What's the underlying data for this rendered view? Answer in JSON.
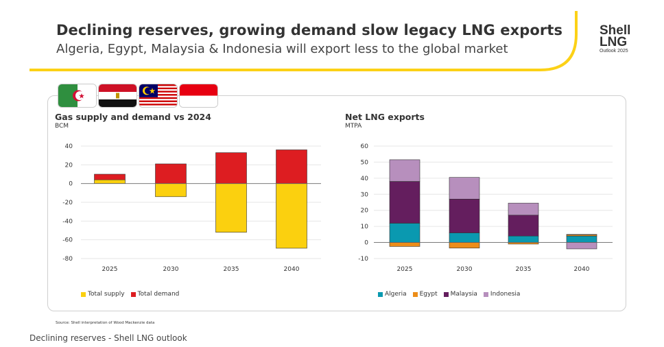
{
  "header": {
    "title": "Declining reserves, growing demand slow legacy LNG exports",
    "subtitle": "Algeria, Egypt, Malaysia & Indonesia will export less to the global market",
    "brand_line1": "Shell",
    "brand_line2": "LNG",
    "brand_line3": "Outlook 2025"
  },
  "colors": {
    "accent_yellow": "#fcd116",
    "supply": "#fbd00f",
    "demand": "#dd1d21",
    "algeria": "#0a99b0",
    "egypt": "#ec8d19",
    "malaysia": "#641e5e",
    "indonesia": "#b78fbd"
  },
  "flags": [
    "algeria-flag-icon",
    "egypt-flag-icon",
    "malaysia-flag-icon",
    "indonesia-flag-icon"
  ],
  "chart_data": [
    {
      "type": "bar",
      "stacked": true,
      "title": "Gas supply and demand vs 2024",
      "ylabel": "BCM",
      "categories": [
        "2025",
        "2030",
        "2035",
        "2040"
      ],
      "ylim": [
        -80,
        40
      ],
      "yticks": [
        40,
        20,
        0,
        -20,
        -40,
        -60,
        -80
      ],
      "ytick_labels": [
        "40",
        "20",
        "0",
        "-20",
        "-40",
        "-60",
        "-80"
      ],
      "legend_position": "bottom-left",
      "series": [
        {
          "name": "Total supply",
          "color": "#fbd00f",
          "values": [
            4,
            -14,
            -52,
            -69
          ]
        },
        {
          "name": "Total demand",
          "color": "#dd1d21",
          "values": [
            6,
            21,
            33,
            36
          ]
        }
      ]
    },
    {
      "type": "bar",
      "stacked": true,
      "title": "Net LNG exports",
      "ylabel": "MTPA",
      "categories": [
        "2025",
        "2030",
        "2035",
        "2040"
      ],
      "ylim": [
        -10,
        60
      ],
      "yticks": [
        60,
        50,
        40,
        30,
        20,
        10,
        0,
        -10
      ],
      "ytick_labels": [
        "60",
        "50",
        "40",
        "30",
        "20",
        "10",
        "0",
        "-10"
      ],
      "legend_position": "bottom-left",
      "series": [
        {
          "name": "Algeria",
          "color": "#0a99b0",
          "values": [
            12,
            6,
            4,
            4
          ]
        },
        {
          "name": "Egypt",
          "color": "#ec8d19",
          "values": [
            -2.5,
            -3.5,
            -1,
            1
          ]
        },
        {
          "name": "Malaysia",
          "color": "#641e5e",
          "values": [
            26,
            21,
            13,
            0
          ]
        },
        {
          "name": "Indonesia",
          "color": "#b78fbd",
          "values": [
            13.5,
            13.5,
            7.5,
            -4
          ]
        }
      ]
    }
  ],
  "footer": {
    "source": "Source: Shell interpretation of Wood Mackenzie data",
    "caption": "Declining reserves - Shell LNG outlook"
  }
}
